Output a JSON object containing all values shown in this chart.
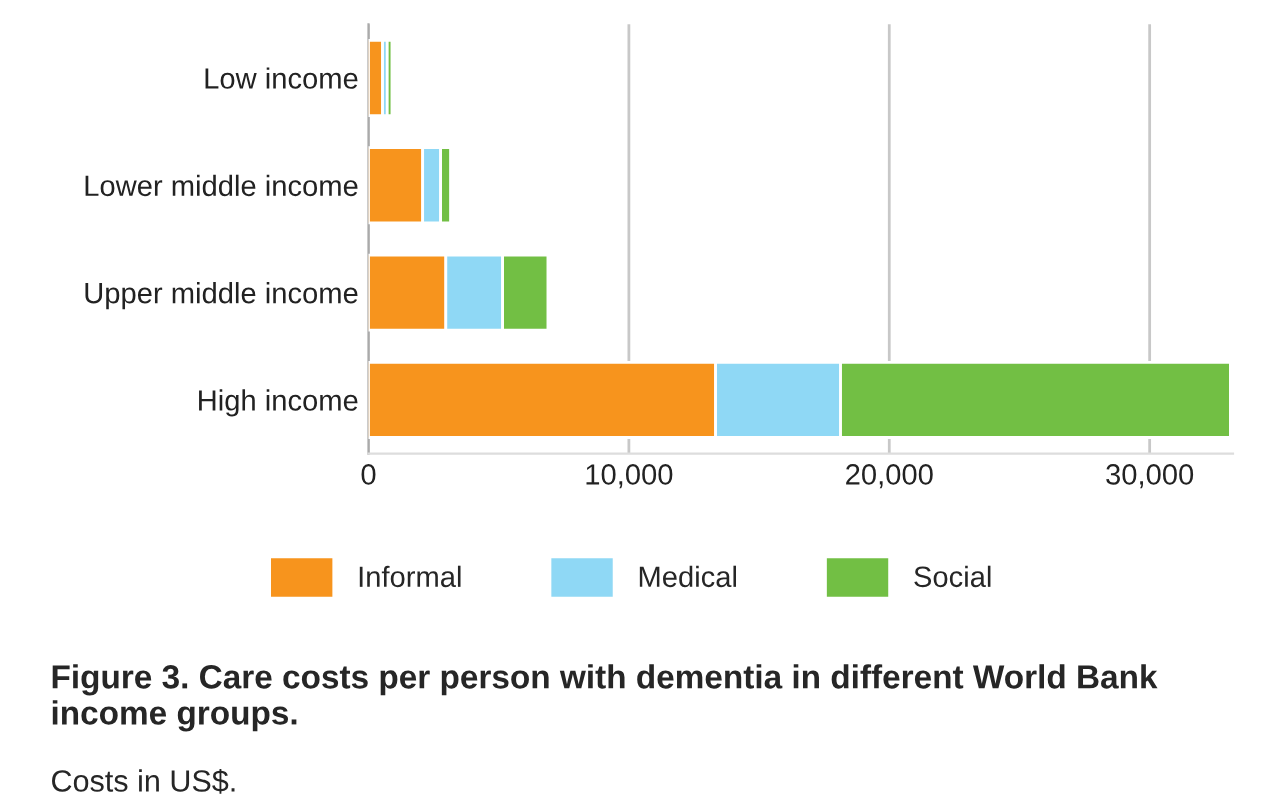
{
  "chart_data": {
    "type": "bar",
    "orientation": "horizontal",
    "stacked": true,
    "title": "Figure 3. Care costs per person with dementia in different World Bank income groups.",
    "annotations": [
      "Costs in US$."
    ],
    "categories": [
      "Low income",
      "Lower middle income",
      "Upper middle income",
      "High income"
    ],
    "series": [
      {
        "name": "Informal",
        "color": "#f7941d",
        "values": [
          540,
          2080,
          2970,
          13330
        ]
      },
      {
        "name": "Medical",
        "color": "#8fd8f5",
        "values": [
          180,
          690,
          2180,
          4800
        ]
      },
      {
        "name": "Social",
        "color": "#72bf44",
        "values": [
          180,
          380,
          1740,
          14970
        ]
      }
    ],
    "xlim": [
      0,
      33200
    ],
    "xticks": [
      0,
      {
        "value": 10000,
        "label": "10,000"
      },
      {
        "value": 20000,
        "label": "20,000"
      },
      {
        "value": 30000,
        "label": "30,000"
      }
    ],
    "grid": "x",
    "legend": "bottom"
  }
}
